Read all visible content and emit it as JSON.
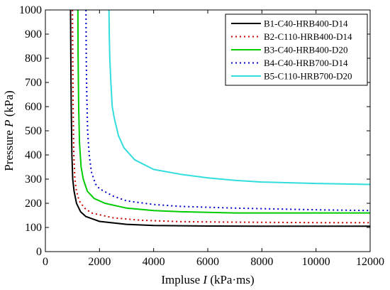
{
  "chart_data": {
    "type": "line",
    "xlabel": {
      "prefix": "Impluse ",
      "var": "I",
      "suffix": " (kPa·ms)"
    },
    "ylabel": {
      "prefix": "Pressure ",
      "var": "P",
      "suffix": " (kPa)"
    },
    "xlim": [
      0,
      12000
    ],
    "ylim": [
      0,
      1000
    ],
    "xticks": [
      0,
      2000,
      4000,
      6000,
      8000,
      10000,
      12000
    ],
    "yticks": [
      0,
      100,
      200,
      300,
      400,
      500,
      600,
      700,
      800,
      900,
      1000
    ],
    "grid": false,
    "legend_position": "top-right",
    "series": [
      {
        "name": "B1-C40-HRB400-D14",
        "color": "#000000",
        "dash": "solid",
        "points": [
          [
            930,
            1000
          ],
          [
            940,
            800
          ],
          [
            955,
            600
          ],
          [
            980,
            400
          ],
          [
            1010,
            300
          ],
          [
            1060,
            250
          ],
          [
            1150,
            200
          ],
          [
            1300,
            165
          ],
          [
            1500,
            145
          ],
          [
            2000,
            125
          ],
          [
            3000,
            113
          ],
          [
            4000,
            108
          ],
          [
            6000,
            106
          ],
          [
            8000,
            105
          ],
          [
            10000,
            105
          ],
          [
            12000,
            105
          ]
        ]
      },
      {
        "name": "B2-C110-HRB400-D14",
        "color": "#cc0000",
        "dash": "dotted",
        "points": [
          [
            1000,
            1000
          ],
          [
            1010,
            800
          ],
          [
            1025,
            600
          ],
          [
            1050,
            400
          ],
          [
            1090,
            300
          ],
          [
            1150,
            250
          ],
          [
            1250,
            210
          ],
          [
            1450,
            180
          ],
          [
            1700,
            160
          ],
          [
            2500,
            140
          ],
          [
            3500,
            130
          ],
          [
            5000,
            124
          ],
          [
            7000,
            122
          ],
          [
            10000,
            120
          ],
          [
            12000,
            120
          ]
        ]
      },
      {
        "name": "B3-C40-HRB400-D20",
        "color": "#00cc00",
        "dash": "solid",
        "points": [
          [
            1200,
            1000
          ],
          [
            1210,
            800
          ],
          [
            1230,
            600
          ],
          [
            1260,
            450
          ],
          [
            1320,
            350
          ],
          [
            1400,
            300
          ],
          [
            1550,
            250
          ],
          [
            1800,
            220
          ],
          [
            2200,
            200
          ],
          [
            3000,
            180
          ],
          [
            4000,
            170
          ],
          [
            5000,
            165
          ],
          [
            7000,
            160
          ],
          [
            10000,
            160
          ],
          [
            12000,
            160
          ]
        ]
      },
      {
        "name": "B4-C40-HRB700-D14",
        "color": "#0000cc",
        "dash": "dotted",
        "points": [
          [
            1500,
            1000
          ],
          [
            1510,
            800
          ],
          [
            1530,
            650
          ],
          [
            1560,
            500
          ],
          [
            1620,
            400
          ],
          [
            1700,
            330
          ],
          [
            1850,
            280
          ],
          [
            2000,
            260
          ],
          [
            2500,
            230
          ],
          [
            3000,
            210
          ],
          [
            4000,
            195
          ],
          [
            5000,
            187
          ],
          [
            7000,
            180
          ],
          [
            10000,
            173
          ],
          [
            12000,
            170
          ]
        ]
      },
      {
        "name": "B5-C110-HRB700-D20",
        "color": "#33dddd",
        "dash": "solid",
        "points": [
          [
            2350,
            1000
          ],
          [
            2360,
            900
          ],
          [
            2380,
            800
          ],
          [
            2420,
            700
          ],
          [
            2470,
            600
          ],
          [
            2550,
            550
          ],
          [
            2700,
            480
          ],
          [
            2900,
            430
          ],
          [
            3300,
            380
          ],
          [
            4000,
            340
          ],
          [
            5000,
            320
          ],
          [
            6000,
            305
          ],
          [
            7000,
            295
          ],
          [
            8000,
            288
          ],
          [
            10000,
            282
          ],
          [
            12000,
            278
          ]
        ]
      }
    ]
  }
}
